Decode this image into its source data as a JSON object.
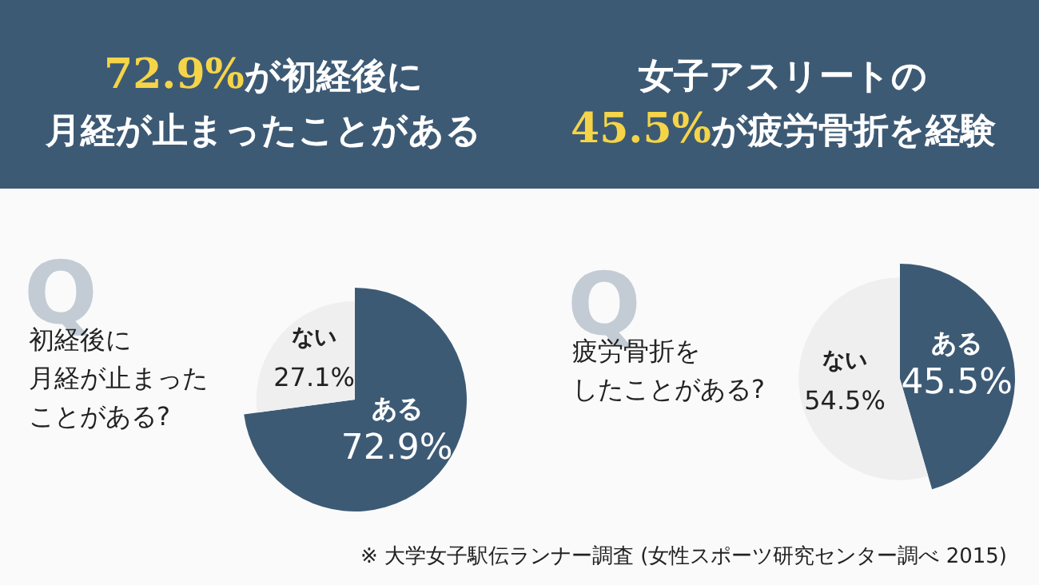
{
  "chart_data": [
    {
      "type": "pie",
      "title": "72.9%が初経後に",
      "subtitle": "月経が止まったことがある",
      "annotations": [
        "Q",
        "初経後に",
        "月経が止まった",
        "ことがある?"
      ],
      "categories": [
        "ある",
        "ない"
      ],
      "values": [
        72.9,
        27.1
      ],
      "value_labels": [
        "72.9%",
        "27.1%"
      ],
      "colors": [
        "#3d5a75",
        "#efefef"
      ]
    },
    {
      "type": "pie",
      "title": "女子アスリートの",
      "subtitle": "45.5%が疲労骨折を経験",
      "annotations": [
        "Q",
        "疲労骨折を",
        "したことがある?",
        "※ 大学女子駅伝ランナー調査 (女性スポーツ研究センター調べ 2015)"
      ],
      "categories": [
        "ある",
        "ない"
      ],
      "values": [
        45.5,
        54.5
      ],
      "value_labels": [
        "45.5%",
        "54.5%"
      ],
      "colors": [
        "#3d5a75",
        "#efefef"
      ]
    }
  ]
}
